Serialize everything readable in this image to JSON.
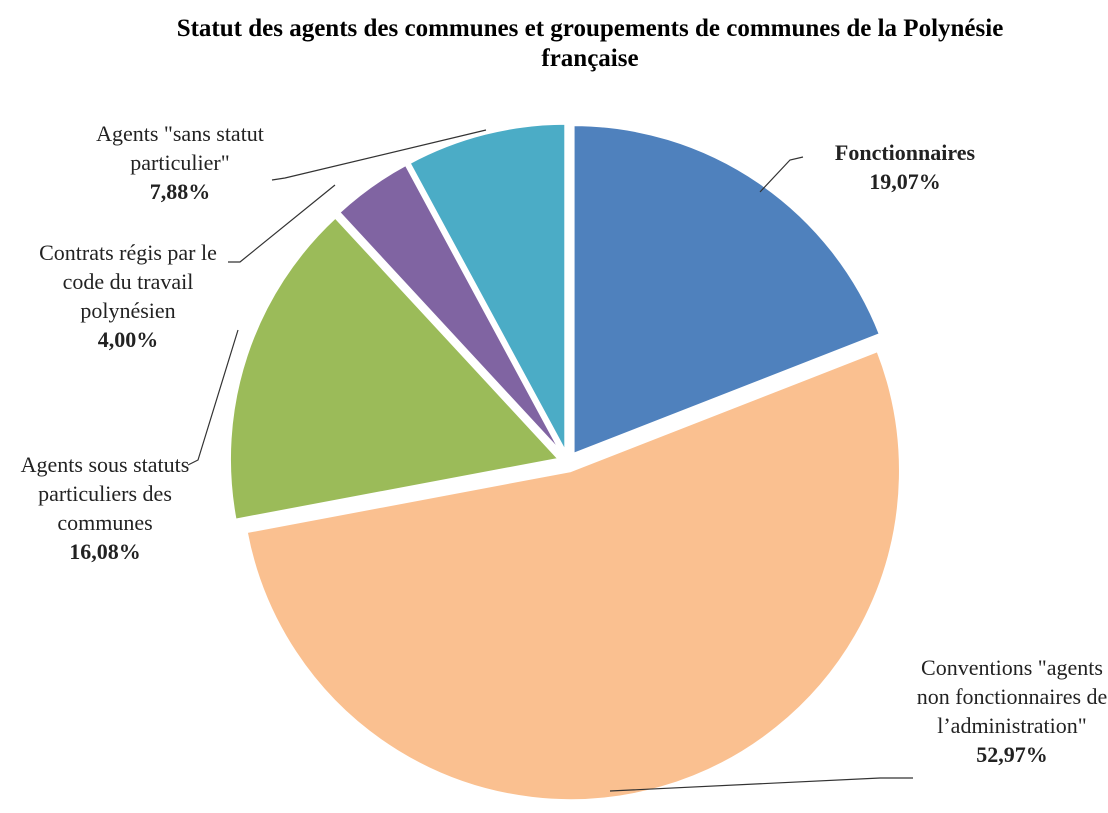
{
  "chart_data": {
    "type": "pie",
    "title": "Statut des agents des communes et groupements de communes de la Polynésie française",
    "categories": [
      "Fonctionnaires",
      "Conventions \"agents non fonctionnaires de l’administration\"",
      "Agents sous statuts particuliers des communes",
      "Contrats régis par le code du travail polynésien",
      "Agents \"sans statut particulier\""
    ],
    "values": [
      19.07,
      52.97,
      16.08,
      4.0,
      7.88
    ],
    "value_labels": [
      "19,07%",
      "52,97%",
      "16,08%",
      "4,00%",
      "7,88%"
    ],
    "colors": [
      "#4f81bd",
      "#fac090",
      "#9bbb59",
      "#8064a2",
      "#4bacc6"
    ]
  }
}
